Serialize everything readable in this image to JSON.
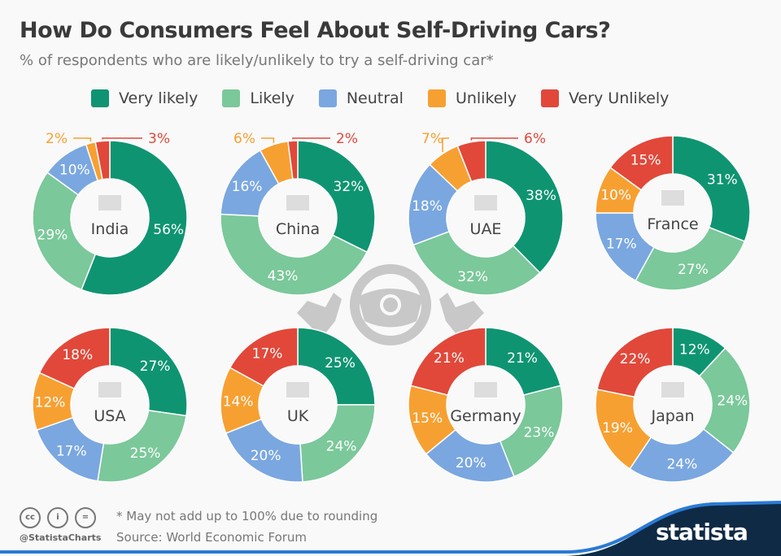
{
  "title": "How Do Consumers Feel About Self-Driving Cars?",
  "subtitle": "% of respondents who are likely/unlikely to try a self-driving car*",
  "footer": {
    "note": "* May not add up to 100% due to rounding",
    "source": "Source: World Economic Forum",
    "handle": "@StatistaCharts",
    "brand": "statista",
    "license_icons": [
      "cc-icon",
      "by-icon",
      "nd-icon"
    ]
  },
  "chart_data": {
    "type": "donut",
    "categories": [
      "Very likely",
      "Likely",
      "Neutral",
      "Unlikely",
      "Very Unlikely"
    ],
    "colors": [
      "#0f9472",
      "#7bc89a",
      "#7aa7e0",
      "#f7a032",
      "#e1483a"
    ],
    "series": [
      {
        "name": "India",
        "flag": "india-flag",
        "values": [
          56,
          29,
          10,
          2,
          3
        ]
      },
      {
        "name": "China",
        "flag": "china-flag",
        "values": [
          32,
          43,
          16,
          6,
          2
        ]
      },
      {
        "name": "UAE",
        "flag": "uae-flag",
        "values": [
          38,
          32,
          18,
          7,
          6
        ]
      },
      {
        "name": "France",
        "flag": "france-flag",
        "values": [
          31,
          27,
          17,
          10,
          15
        ]
      },
      {
        "name": "USA",
        "flag": "usa-flag",
        "values": [
          27,
          25,
          17,
          12,
          18
        ]
      },
      {
        "name": "UK",
        "flag": "uk-flag",
        "values": [
          25,
          24,
          20,
          14,
          17
        ]
      },
      {
        "name": "Germany",
        "flag": "germany-flag",
        "values": [
          21,
          23,
          20,
          15,
          21
        ]
      },
      {
        "name": "Japan",
        "flag": "japan-flag",
        "values": [
          12,
          24,
          24,
          19,
          22
        ]
      }
    ]
  }
}
